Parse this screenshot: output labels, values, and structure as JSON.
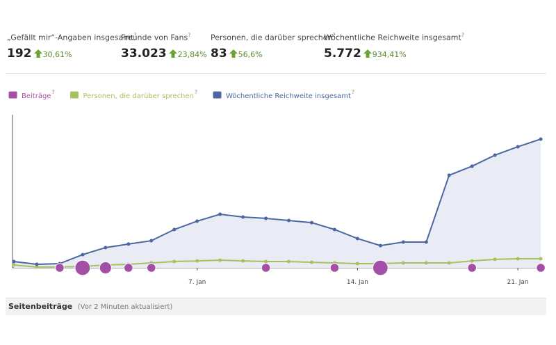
{
  "help": "?",
  "stats": [
    {
      "label": "„Gefällt mir“-Angaben insgesamt",
      "value": "192",
      "change": "30,61%"
    },
    {
      "label": "Freunde von Fans",
      "value": "33.023",
      "change": "23,84%"
    },
    {
      "label": "Personen, die darüber sprechen",
      "value": "83",
      "change": "56,6%"
    },
    {
      "label": "Wöchentliche Reichweite insgesamt",
      "value": "5.772",
      "change": "934,41%"
    }
  ],
  "chart_data": {
    "type": "line",
    "categories": [
      null,
      null,
      null,
      null,
      null,
      null,
      null,
      null,
      "7. Jan",
      null,
      null,
      null,
      null,
      null,
      null,
      "14. Jan",
      null,
      null,
      null,
      null,
      null,
      null,
      "21. Jan",
      null
    ],
    "ylim": [
      0,
      100
    ],
    "series": [
      {
        "name": "Beiträge",
        "color": "#a44fa6",
        "kind": "bubble",
        "values": [
          null,
          null,
          1,
          3,
          2,
          1,
          1,
          null,
          null,
          null,
          null,
          1,
          null,
          null,
          1,
          null,
          3,
          null,
          null,
          null,
          1,
          null,
          null,
          1
        ]
      },
      {
        "name": "Personen, die darüber sprechen",
        "color": "#a6c15f",
        "values": [
          1.8,
          0.5,
          0.5,
          0.9,
          1.8,
          2.3,
          3.2,
          4.1,
          4.5,
          5,
          4.5,
          4.1,
          4.1,
          3.6,
          3.2,
          2.7,
          2.7,
          3.2,
          3.2,
          3.2,
          4.5,
          5.5,
          5.9,
          5.9
        ]
      },
      {
        "name": "Wöchentliche Reichweite insgesamt",
        "color": "#4a67a1",
        "area": "#e9ecf5",
        "values": [
          4.1,
          2.3,
          2.7,
          8.6,
          13.2,
          15.5,
          17.7,
          25,
          30.5,
          35,
          33.2,
          32.3,
          30.9,
          29.5,
          25,
          19.1,
          14.5,
          16.8,
          16.8,
          60.5,
          66.4,
          73.6,
          79.1,
          84.1
        ]
      }
    ]
  },
  "footer": {
    "title": "Seitenbeiträge",
    "note": "(Vor 2 Minuten aktualisiert)"
  }
}
